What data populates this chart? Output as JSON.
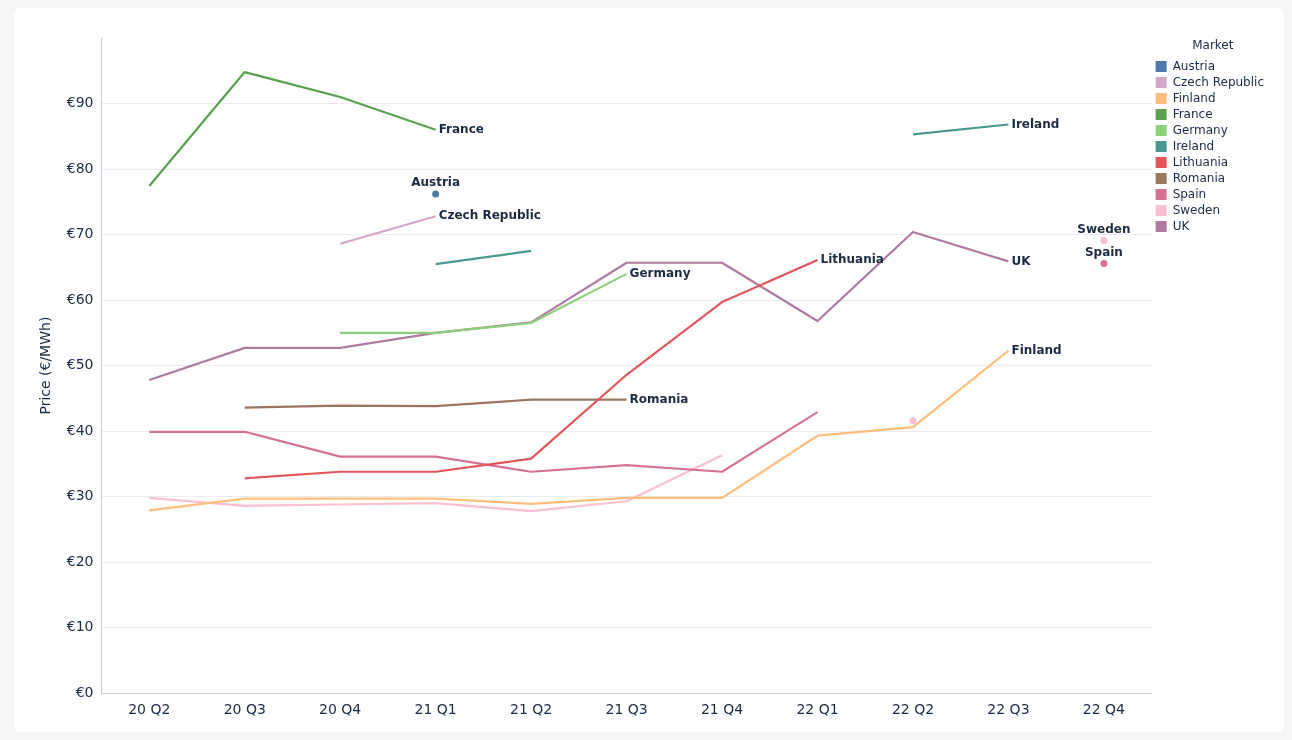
{
  "chart_data": {
    "type": "line",
    "ylabel": "Price (€/MWh)",
    "legend_title": "Market",
    "categories": [
      "20 Q2",
      "20 Q3",
      "20 Q4",
      "21 Q1",
      "21 Q2",
      "21 Q3",
      "21 Q4",
      "22 Q1",
      "22 Q2",
      "22 Q3",
      "22 Q4"
    ],
    "ylim": [
      0,
      100
    ],
    "yticks": [
      {
        "value": 0,
        "label": "€0"
      },
      {
        "value": 10,
        "label": "€10"
      },
      {
        "value": 20,
        "label": "€20"
      },
      {
        "value": 30,
        "label": "€30"
      },
      {
        "value": 40,
        "label": "€40"
      },
      {
        "value": 50,
        "label": "€50"
      },
      {
        "value": 60,
        "label": "€60"
      },
      {
        "value": 70,
        "label": "€70"
      },
      {
        "value": 80,
        "label": "€80"
      },
      {
        "value": 90,
        "label": "€90"
      }
    ],
    "grid": "y",
    "legend": "top right",
    "series": [
      {
        "name": "Austria",
        "color": "#4e79a7",
        "marker": "circle",
        "values": [
          null,
          null,
          null,
          76.2,
          null,
          null,
          null,
          null,
          null,
          null,
          null
        ]
      },
      {
        "name": "Czech Republic",
        "color": "#d4a6c8",
        "values": [
          null,
          null,
          68.6,
          72.8,
          null,
          null,
          null,
          null,
          null,
          null,
          null
        ]
      },
      {
        "name": "Finland",
        "color": "#ffbe7d",
        "values": [
          27.9,
          29.7,
          29.7,
          29.7,
          28.9,
          29.8,
          29.8,
          39.3,
          40.6,
          52.3,
          null
        ]
      },
      {
        "name": "France",
        "color": "#59a14f",
        "values": [
          77.4,
          94.8,
          91.0,
          86.0,
          null,
          null,
          null,
          null,
          null,
          null,
          null
        ]
      },
      {
        "name": "Germany",
        "color": "#8cd17d",
        "values": [
          null,
          null,
          55.0,
          55.0,
          56.5,
          64.0,
          null,
          null,
          null,
          null,
          null
        ]
      },
      {
        "name": "Ireland",
        "color": "#499894",
        "values": [
          null,
          null,
          null,
          65.5,
          67.5,
          null,
          null,
          null,
          85.3,
          86.8,
          null
        ]
      },
      {
        "name": "Lithuania",
        "color": "#e15759",
        "values": [
          null,
          32.8,
          33.8,
          33.8,
          35.8,
          48.6,
          59.7,
          66.1,
          null,
          null,
          null
        ]
      },
      {
        "name": "Romania",
        "color": "#9d7660",
        "values": [
          null,
          43.6,
          43.9,
          43.8,
          44.8,
          44.8,
          null,
          null,
          null,
          null,
          null
        ]
      },
      {
        "name": "Spain",
        "color": "#d37295",
        "values": [
          39.9,
          39.9,
          36.1,
          36.1,
          33.8,
          34.8,
          33.8,
          42.9,
          null,
          null,
          65.6
        ]
      },
      {
        "name": "Sweden",
        "color": "#fabfd2",
        "values": [
          29.8,
          28.6,
          28.8,
          29.0,
          27.8,
          29.3,
          36.3,
          null,
          41.6,
          null,
          69.1
        ]
      },
      {
        "name": "UK",
        "color": "#b07aa1",
        "values": [
          47.8,
          52.7,
          52.7,
          55.0,
          56.6,
          65.7,
          65.7,
          56.8,
          70.4,
          65.9,
          null
        ]
      }
    ]
  }
}
